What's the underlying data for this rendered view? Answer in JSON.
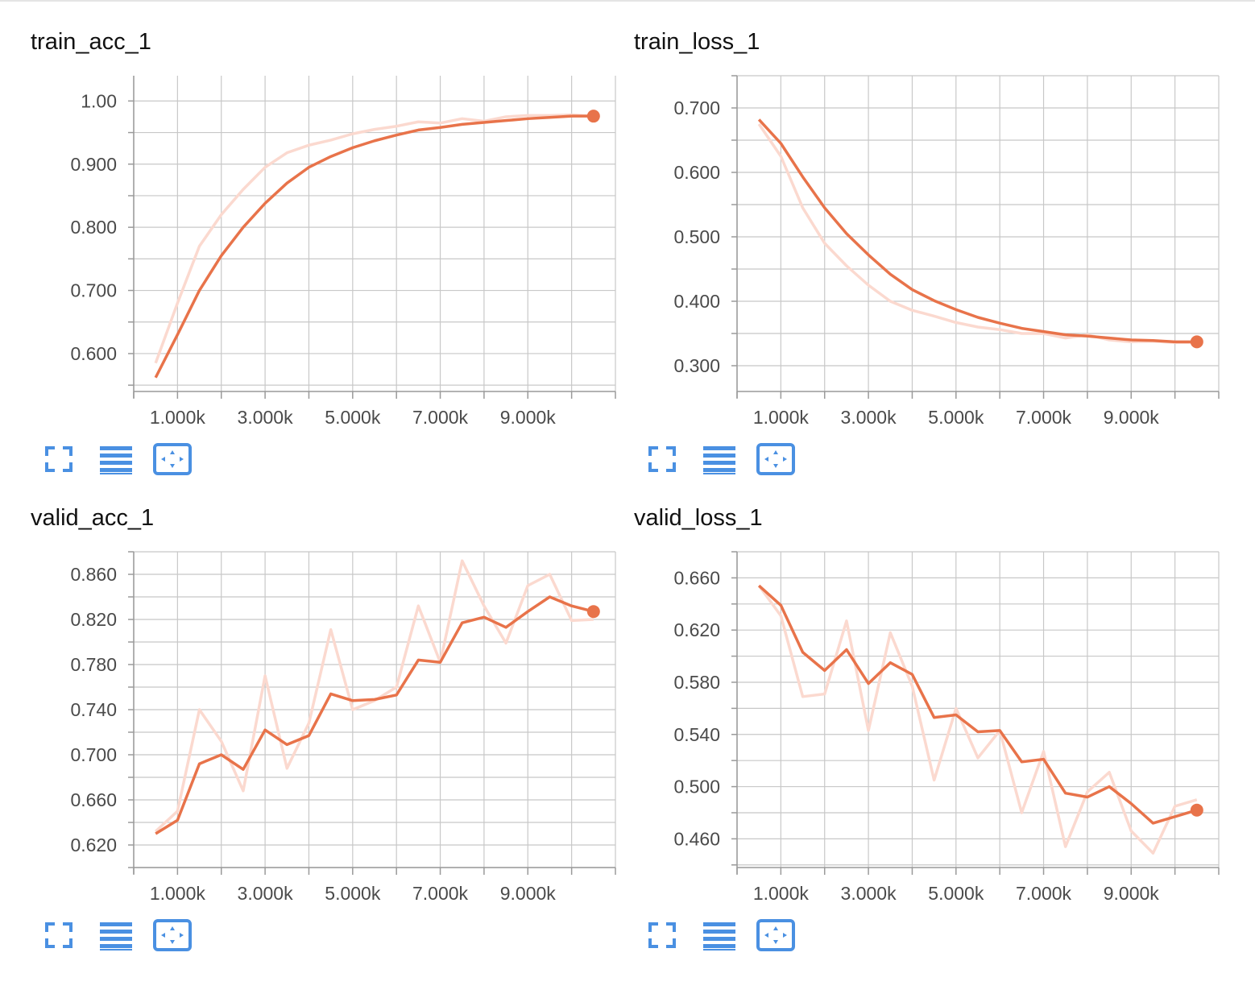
{
  "colors": {
    "series": "#e8734a",
    "raw_series": "#fbd9cf",
    "grid": "#c8c8c8",
    "axis": "#9a9a9a",
    "icon": "#4a90e2"
  },
  "controls": {
    "icons": [
      "fullscreen-icon",
      "data-table-icon",
      "fit-domain-icon"
    ]
  },
  "chart_data": [
    {
      "type": "line",
      "title": "train_acc_1",
      "xlim": [
        0,
        11000
      ],
      "ylim": [
        0.54,
        1.04
      ],
      "x_ticks": [
        0,
        1000,
        2000,
        3000,
        4000,
        5000,
        6000,
        7000,
        8000,
        9000,
        10000,
        11000
      ],
      "x_tick_labels": [
        {
          "x": 1000,
          "label": "1.000k"
        },
        {
          "x": 3000,
          "label": "3.000k"
        },
        {
          "x": 5000,
          "label": "5.000k"
        },
        {
          "x": 7000,
          "label": "7.000k"
        },
        {
          "x": 9000,
          "label": "9.000k"
        }
      ],
      "y_ticks": [
        0.55,
        0.6,
        0.65,
        0.7,
        0.75,
        0.8,
        0.85,
        0.9,
        0.95,
        1.0,
        1.05
      ],
      "y_tick_labels": [
        {
          "y": 0.6,
          "label": "0.600"
        },
        {
          "y": 0.7,
          "label": "0.700"
        },
        {
          "y": 0.8,
          "label": "0.800"
        },
        {
          "y": 0.9,
          "label": "0.900"
        },
        {
          "y": 1.0,
          "label": "1.00"
        }
      ],
      "x": [
        500,
        1000,
        1500,
        2000,
        2500,
        3000,
        3500,
        4000,
        4500,
        5000,
        5500,
        6000,
        6500,
        7000,
        7500,
        8000,
        8500,
        9000,
        9500,
        10000,
        10500
      ],
      "series": [
        {
          "values": [
            0.562,
            0.63,
            0.7,
            0.755,
            0.8,
            0.838,
            0.87,
            0.895,
            0.912,
            0.926,
            0.937,
            0.946,
            0.954,
            0.958,
            0.963,
            0.966,
            0.969,
            0.972,
            0.974,
            0.976,
            0.976
          ]
        },
        {
          "values": [
            0.585,
            0.68,
            0.77,
            0.82,
            0.86,
            0.895,
            0.918,
            0.93,
            0.938,
            0.948,
            0.955,
            0.96,
            0.967,
            0.965,
            0.972,
            0.968,
            0.975,
            0.977,
            0.977,
            0.978,
            0.976
          ]
        }
      ]
    },
    {
      "type": "line",
      "title": "train_loss_1",
      "xlim": [
        0,
        11000
      ],
      "ylim": [
        0.26,
        0.75
      ],
      "x_ticks": [
        0,
        1000,
        2000,
        3000,
        4000,
        5000,
        6000,
        7000,
        8000,
        9000,
        10000,
        11000
      ],
      "x_tick_labels": [
        {
          "x": 1000,
          "label": "1.000k"
        },
        {
          "x": 3000,
          "label": "3.000k"
        },
        {
          "x": 5000,
          "label": "5.000k"
        },
        {
          "x": 7000,
          "label": "7.000k"
        },
        {
          "x": 9000,
          "label": "9.000k"
        }
      ],
      "y_ticks": [
        0.3,
        0.35,
        0.4,
        0.45,
        0.5,
        0.55,
        0.6,
        0.65,
        0.7,
        0.75
      ],
      "y_tick_labels": [
        {
          "y": 0.3,
          "label": "0.300"
        },
        {
          "y": 0.4,
          "label": "0.400"
        },
        {
          "y": 0.5,
          "label": "0.500"
        },
        {
          "y": 0.6,
          "label": "0.600"
        },
        {
          "y": 0.7,
          "label": "0.700"
        }
      ],
      "x": [
        500,
        1000,
        1500,
        2000,
        2500,
        3000,
        3500,
        4000,
        4500,
        5000,
        5500,
        6000,
        6500,
        7000,
        7500,
        8000,
        8500,
        9000,
        9500,
        10000,
        10500
      ],
      "series": [
        {
          "values": [
            0.682,
            0.645,
            0.593,
            0.545,
            0.505,
            0.472,
            0.442,
            0.418,
            0.401,
            0.387,
            0.375,
            0.366,
            0.358,
            0.353,
            0.348,
            0.346,
            0.343,
            0.34,
            0.339,
            0.337,
            0.337
          ]
        },
        {
          "values": [
            0.675,
            0.625,
            0.545,
            0.49,
            0.455,
            0.425,
            0.4,
            0.386,
            0.377,
            0.367,
            0.36,
            0.356,
            0.35,
            0.35,
            0.343,
            0.348,
            0.34,
            0.337,
            0.338,
            0.336,
            0.336
          ]
        }
      ]
    },
    {
      "type": "line",
      "title": "valid_acc_1",
      "xlim": [
        0,
        11000
      ],
      "ylim": [
        0.6,
        0.88
      ],
      "x_ticks": [
        0,
        1000,
        2000,
        3000,
        4000,
        5000,
        6000,
        7000,
        8000,
        9000,
        10000,
        11000
      ],
      "x_tick_labels": [
        {
          "x": 1000,
          "label": "1.000k"
        },
        {
          "x": 3000,
          "label": "3.000k"
        },
        {
          "x": 5000,
          "label": "5.000k"
        },
        {
          "x": 7000,
          "label": "7.000k"
        },
        {
          "x": 9000,
          "label": "9.000k"
        }
      ],
      "y_ticks": [
        0.6,
        0.62,
        0.64,
        0.66,
        0.68,
        0.7,
        0.72,
        0.74,
        0.76,
        0.78,
        0.8,
        0.82,
        0.84,
        0.86,
        0.88
      ],
      "y_tick_labels": [
        {
          "y": 0.62,
          "label": "0.620"
        },
        {
          "y": 0.66,
          "label": "0.660"
        },
        {
          "y": 0.7,
          "label": "0.700"
        },
        {
          "y": 0.74,
          "label": "0.740"
        },
        {
          "y": 0.78,
          "label": "0.780"
        },
        {
          "y": 0.82,
          "label": "0.820"
        },
        {
          "y": 0.86,
          "label": "0.860"
        }
      ],
      "x": [
        500,
        1000,
        1500,
        2000,
        2500,
        3000,
        3500,
        4000,
        4500,
        5000,
        5500,
        6000,
        6500,
        7000,
        7500,
        8000,
        8500,
        9000,
        9500,
        10000,
        10500
      ],
      "series": [
        {
          "values": [
            0.63,
            0.642,
            0.692,
            0.7,
            0.687,
            0.722,
            0.709,
            0.717,
            0.754,
            0.748,
            0.749,
            0.753,
            0.784,
            0.782,
            0.817,
            0.822,
            0.813,
            0.827,
            0.84,
            0.832,
            0.827
          ]
        },
        {
          "values": [
            0.632,
            0.65,
            0.74,
            0.712,
            0.668,
            0.77,
            0.688,
            0.728,
            0.811,
            0.74,
            0.748,
            0.76,
            0.832,
            0.782,
            0.872,
            0.832,
            0.799,
            0.85,
            0.86,
            0.819,
            0.82
          ]
        }
      ]
    },
    {
      "type": "line",
      "title": "valid_loss_1",
      "xlim": [
        0,
        11000
      ],
      "ylim": [
        0.438,
        0.68
      ],
      "x_ticks": [
        0,
        1000,
        2000,
        3000,
        4000,
        5000,
        6000,
        7000,
        8000,
        9000,
        10000,
        11000
      ],
      "x_tick_labels": [
        {
          "x": 1000,
          "label": "1.000k"
        },
        {
          "x": 3000,
          "label": "3.000k"
        },
        {
          "x": 5000,
          "label": "5.000k"
        },
        {
          "x": 7000,
          "label": "7.000k"
        },
        {
          "x": 9000,
          "label": "9.000k"
        }
      ],
      "y_ticks": [
        0.44,
        0.46,
        0.48,
        0.5,
        0.52,
        0.54,
        0.56,
        0.58,
        0.6,
        0.62,
        0.64,
        0.66,
        0.68
      ],
      "y_tick_labels": [
        {
          "y": 0.46,
          "label": "0.460"
        },
        {
          "y": 0.5,
          "label": "0.500"
        },
        {
          "y": 0.54,
          "label": "0.540"
        },
        {
          "y": 0.58,
          "label": "0.580"
        },
        {
          "y": 0.62,
          "label": "0.620"
        },
        {
          "y": 0.66,
          "label": "0.660"
        }
      ],
      "x": [
        500,
        1000,
        1500,
        2000,
        2500,
        3000,
        3500,
        4000,
        4500,
        5000,
        5500,
        6000,
        6500,
        7000,
        7500,
        8000,
        8500,
        9000,
        9500,
        10000,
        10500
      ],
      "series": [
        {
          "values": [
            0.654,
            0.639,
            0.603,
            0.589,
            0.605,
            0.579,
            0.595,
            0.586,
            0.553,
            0.555,
            0.542,
            0.543,
            0.519,
            0.521,
            0.495,
            0.492,
            0.5,
            0.487,
            0.472,
            0.477,
            0.482
          ]
        },
        {
          "values": [
            0.654,
            0.631,
            0.569,
            0.571,
            0.627,
            0.543,
            0.618,
            0.577,
            0.505,
            0.56,
            0.522,
            0.543,
            0.48,
            0.527,
            0.454,
            0.496,
            0.511,
            0.466,
            0.449,
            0.485,
            0.49
          ]
        }
      ]
    }
  ]
}
